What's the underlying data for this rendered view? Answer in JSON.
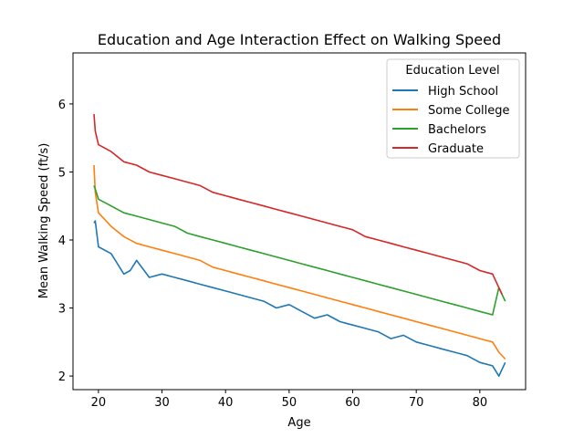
{
  "chart_data": {
    "type": "line",
    "title": "Education and Age Interaction Effect on Walking Speed",
    "xlabel": "Age",
    "ylabel": "Mean Walking Speed (ft/s)",
    "xlim": [
      16.0,
      87.2
    ],
    "ylim": [
      1.8,
      6.75
    ],
    "xticks": [
      20,
      30,
      40,
      50,
      60,
      70,
      80
    ],
    "yticks": [
      2,
      3,
      4,
      5,
      6
    ],
    "grid": false,
    "legend": {
      "title": "Education Level",
      "position": "top-right"
    },
    "series": [
      {
        "name": "High School",
        "color": "#1f77b4",
        "x": [
          19.3,
          19.5,
          20.0,
          22.0,
          24.0,
          25.0,
          26.0,
          28.0,
          30.0,
          32.0,
          34.0,
          36.0,
          38.0,
          40.0,
          42.0,
          44.0,
          46.0,
          48.0,
          50.0,
          52.0,
          54.0,
          56.0,
          58.0,
          60.0,
          62.0,
          64.0,
          66.0,
          68.0,
          70.0,
          72.0,
          74.0,
          76.0,
          78.0,
          80.0,
          82.0,
          83.0,
          84.0
        ],
        "values": [
          4.25,
          4.28,
          3.9,
          3.8,
          3.5,
          3.55,
          3.7,
          3.45,
          3.5,
          3.45,
          3.4,
          3.35,
          3.3,
          3.25,
          3.2,
          3.15,
          3.1,
          3.0,
          3.05,
          2.95,
          2.85,
          2.9,
          2.8,
          2.75,
          2.7,
          2.65,
          2.55,
          2.6,
          2.5,
          2.45,
          2.4,
          2.35,
          2.3,
          2.2,
          2.15,
          2.0,
          2.2
        ]
      },
      {
        "name": "Some College",
        "color": "#ff7f0e",
        "x": [
          19.3,
          19.5,
          20.0,
          22.0,
          24.0,
          26.0,
          28.0,
          30.0,
          32.0,
          34.0,
          36.0,
          38.0,
          40.0,
          42.0,
          44.0,
          46.0,
          48.0,
          50.0,
          52.0,
          54.0,
          56.0,
          58.0,
          60.0,
          62.0,
          64.0,
          66.0,
          68.0,
          70.0,
          72.0,
          74.0,
          76.0,
          78.0,
          80.0,
          82.0,
          83.0,
          84.0
        ],
        "values": [
          5.1,
          4.7,
          4.4,
          4.2,
          4.05,
          3.95,
          3.9,
          3.85,
          3.8,
          3.75,
          3.7,
          3.6,
          3.55,
          3.5,
          3.45,
          3.4,
          3.35,
          3.3,
          3.25,
          3.2,
          3.15,
          3.1,
          3.05,
          3.0,
          2.95,
          2.9,
          2.85,
          2.8,
          2.75,
          2.7,
          2.65,
          2.6,
          2.55,
          2.5,
          2.35,
          2.25
        ]
      },
      {
        "name": "Bachelors",
        "color": "#2ca02c",
        "x": [
          19.3,
          19.5,
          20.0,
          22.0,
          24.0,
          26.0,
          28.0,
          30.0,
          32.0,
          34.0,
          36.0,
          38.0,
          40.0,
          42.0,
          44.0,
          46.0,
          48.0,
          50.0,
          52.0,
          54.0,
          56.0,
          58.0,
          60.0,
          62.0,
          64.0,
          66.0,
          68.0,
          70.0,
          72.0,
          74.0,
          76.0,
          78.0,
          80.0,
          82.0,
          83.0,
          84.0
        ],
        "values": [
          4.8,
          4.75,
          4.6,
          4.5,
          4.4,
          4.35,
          4.3,
          4.25,
          4.2,
          4.1,
          4.05,
          4.0,
          3.95,
          3.9,
          3.85,
          3.8,
          3.75,
          3.7,
          3.65,
          3.6,
          3.55,
          3.5,
          3.45,
          3.4,
          3.35,
          3.3,
          3.25,
          3.2,
          3.15,
          3.1,
          3.05,
          3.0,
          2.95,
          2.9,
          3.3,
          3.1
        ]
      },
      {
        "name": "Graduate",
        "color": "#d62728",
        "x": [
          19.3,
          19.5,
          20.0,
          22.0,
          24.0,
          26.0,
          28.0,
          30.0,
          32.0,
          34.0,
          36.0,
          38.0,
          40.0,
          42.0,
          44.0,
          46.0,
          48.0,
          50.0,
          52.0,
          54.0,
          56.0,
          58.0,
          60.0,
          62.0,
          64.0,
          66.0,
          68.0,
          70.0,
          72.0,
          74.0,
          76.0,
          78.0,
          80.0,
          82.0,
          83.0,
          83.5
        ],
        "values": [
          5.85,
          5.6,
          5.4,
          5.3,
          5.15,
          5.1,
          5.0,
          4.95,
          4.9,
          4.85,
          4.8,
          4.7,
          4.65,
          4.6,
          4.55,
          4.5,
          4.45,
          4.4,
          4.35,
          4.3,
          4.25,
          4.2,
          4.15,
          4.05,
          4.0,
          3.95,
          3.9,
          3.85,
          3.8,
          3.75,
          3.7,
          3.65,
          3.55,
          3.5,
          3.3,
          3.2
        ]
      }
    ]
  }
}
